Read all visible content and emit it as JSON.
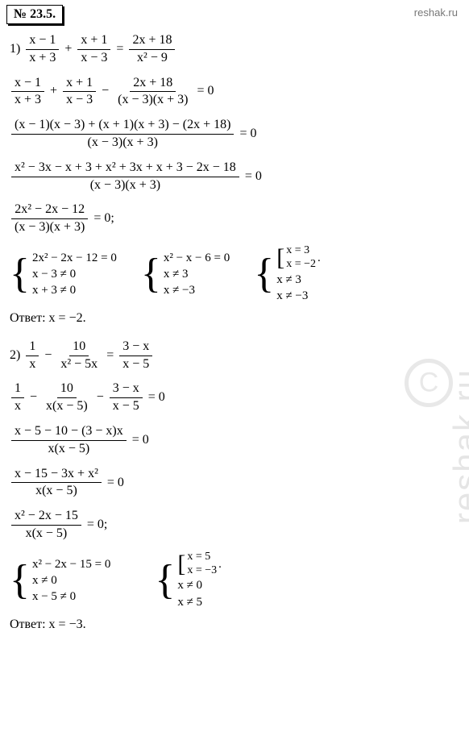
{
  "header": {
    "problem_number": "№ 23.5."
  },
  "site": "reshak.ru",
  "watermark": "reshak.ru",
  "problem1": {
    "label": "1)",
    "eq1": {
      "f1n": "x − 1",
      "f1d": "x + 3",
      "op1": "+",
      "f2n": "x + 1",
      "f2d": "x − 3",
      "op2": "=",
      "f3n": "2x + 18",
      "f3d": "x² − 9"
    },
    "eq2": {
      "f1n": "x − 1",
      "f1d": "x + 3",
      "op1": "+",
      "f2n": "x + 1",
      "f2d": "x − 3",
      "op2": "−",
      "f3n": "2x + 18",
      "f3d": "(x − 3)(x + 3)",
      "rhs": "= 0"
    },
    "eq3": {
      "num": "(x − 1)(x − 3) + (x + 1)(x + 3) − (2x + 18)",
      "den": "(x − 3)(x + 3)",
      "rhs": "= 0"
    },
    "eq4": {
      "num": "x² − 3x − x + 3 + x² + 3x + x + 3 − 2x − 18",
      "den": "(x − 3)(x + 3)",
      "rhs": "= 0"
    },
    "eq5": {
      "num": "2x² − 2x − 12",
      "den": "(x − 3)(x + 3)",
      "rhs": "= 0;"
    },
    "sys1": {
      "r1": "2x² − 2x − 12 = 0",
      "r2": "x − 3 ≠ 0",
      "r3": "x + 3 ≠ 0"
    },
    "sys2": {
      "r1": "x² − x − 6 = 0",
      "r2": "x ≠ 3",
      "r3": "x ≠ −3"
    },
    "sys3": {
      "b1": "x = 3",
      "b2": "x = −2",
      "r2": "x ≠ 3",
      "r3": "x ≠ −3",
      "period": "."
    },
    "answer": "Ответ: x = −2."
  },
  "problem2": {
    "label": "2)",
    "eq1": {
      "f1n": "1",
      "f1d": "x",
      "op1": "−",
      "f2n": "10",
      "f2d": "x² − 5x",
      "op2": "=",
      "f3n": "3 − x",
      "f3d": "x − 5"
    },
    "eq2": {
      "f1n": "1",
      "f1d": "x",
      "op1": "−",
      "f2n": "10",
      "f2d": "x(x − 5)",
      "op2": "−",
      "f3n": "3 − x",
      "f3d": "x − 5",
      "rhs": "= 0"
    },
    "eq3": {
      "num": "x − 5 − 10 − (3 − x)x",
      "den": "x(x − 5)",
      "rhs": "= 0"
    },
    "eq4": {
      "num": "x − 15 − 3x + x²",
      "den": "x(x − 5)",
      "rhs": "= 0"
    },
    "eq5": {
      "num": "x² − 2x − 15",
      "den": "x(x − 5)",
      "rhs": "= 0;"
    },
    "sys1": {
      "r1": "x² − 2x − 15 = 0",
      "r2": "x ≠ 0",
      "r3": "x − 5 ≠ 0"
    },
    "sys2": {
      "b1": "x = 5",
      "b2": "x = −3",
      "r2": "x ≠ 0",
      "r3": "x ≠ 5",
      "period": "."
    },
    "answer": "Ответ: x = −3."
  }
}
